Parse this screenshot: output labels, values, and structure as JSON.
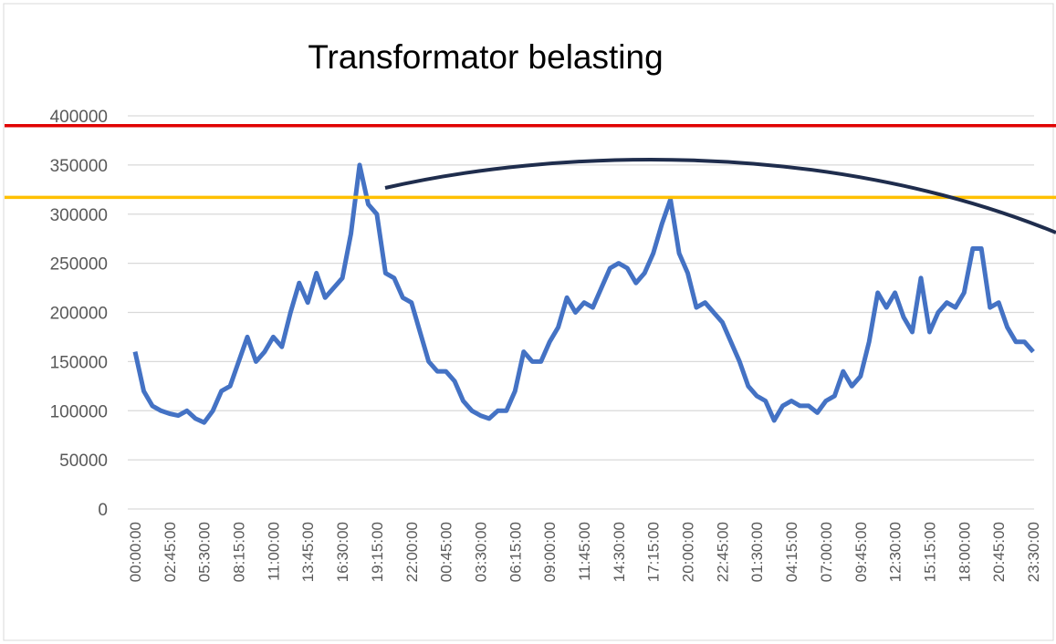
{
  "chart_data": {
    "type": "line",
    "title": "Transformator belasting",
    "categories": [
      "00:00:00",
      null,
      null,
      null,
      "02:45:00",
      null,
      null,
      null,
      "05:30:00",
      null,
      null,
      null,
      "08:15:00",
      null,
      null,
      null,
      "11:00:00",
      null,
      null,
      null,
      "13:45:00",
      null,
      null,
      null,
      "16:30:00",
      null,
      null,
      null,
      "19:15:00",
      null,
      null,
      null,
      "22:00:00",
      null,
      null,
      null,
      "00:45:00",
      null,
      null,
      null,
      "03:30:00",
      null,
      null,
      null,
      "06:15:00",
      null,
      null,
      null,
      "09:00:00",
      null,
      null,
      null,
      "11:45:00",
      null,
      null,
      null,
      "14:30:00",
      null,
      null,
      null,
      "17:15:00",
      null,
      null,
      null,
      "20:00:00",
      null,
      null,
      null,
      "22:45:00",
      null,
      null,
      null,
      "01:30:00",
      null,
      null,
      null,
      "04:15:00",
      null,
      null,
      null,
      "07:00:00",
      null,
      null,
      null,
      "09:45:00",
      null,
      null,
      null,
      "12:30:00",
      null,
      null,
      null,
      "15:15:00",
      null,
      null,
      null,
      "18:00:00",
      null,
      null,
      null,
      "20:45:00",
      null,
      null,
      null,
      "23:30:00"
    ],
    "series": [
      {
        "color": "#4472c4",
        "values": [
          160000,
          120000,
          105000,
          100000,
          97000,
          95000,
          100000,
          92000,
          88000,
          100000,
          120000,
          125000,
          150000,
          175000,
          150000,
          160000,
          175000,
          165000,
          200000,
          230000,
          210000,
          240000,
          215000,
          225000,
          235000,
          280000,
          350000,
          310000,
          300000,
          240000,
          235000,
          215000,
          210000,
          180000,
          150000,
          140000,
          140000,
          130000,
          110000,
          100000,
          95000,
          92000,
          100000,
          100000,
          120000,
          160000,
          150000,
          150000,
          170000,
          185000,
          215000,
          200000,
          210000,
          205000,
          225000,
          245000,
          250000,
          245000,
          230000,
          240000,
          260000,
          290000,
          315000,
          260000,
          240000,
          205000,
          210000,
          200000,
          190000,
          170000,
          150000,
          125000,
          115000,
          110000,
          90000,
          105000,
          110000,
          105000,
          105000,
          98000,
          110000,
          115000,
          140000,
          125000,
          135000,
          170000,
          220000,
          205000,
          220000,
          195000,
          180000,
          235000,
          180000,
          200000,
          210000,
          205000,
          220000,
          265000,
          265000,
          205000,
          210000,
          185000,
          170000,
          170000,
          160000
        ]
      }
    ],
    "reference_lines": [
      {
        "value": 390000,
        "color": "#e00000"
      },
      {
        "value": 317000,
        "color": "#ffc000"
      }
    ],
    "ylim": [
      0,
      400000
    ],
    "yticks": [
      0,
      50000,
      100000,
      150000,
      200000,
      250000,
      300000,
      350000,
      400000
    ],
    "grid": true
  }
}
